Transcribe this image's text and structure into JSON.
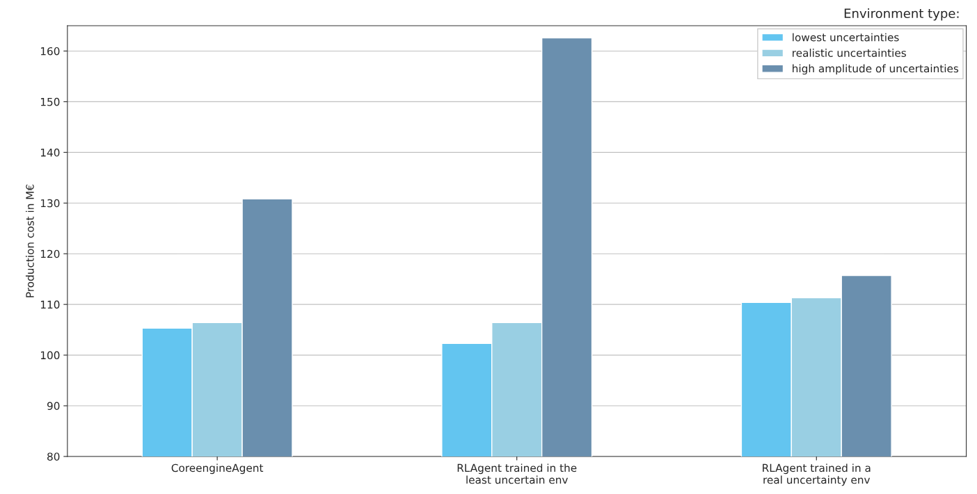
{
  "chart_data": {
    "type": "bar",
    "ylabel": "Production cost in M€",
    "legend_title": "Environment type:",
    "categories": [
      "CoreengineAgent",
      "RLAgent trained in the\nleast uncertain env",
      "RLAgent trained in a\nreal uncertainty env"
    ],
    "series": [
      {
        "name": "lowest uncertainties",
        "color": "#63c5f0",
        "values": [
          105.3,
          102.3,
          110.4
        ]
      },
      {
        "name": "realistic uncertainties",
        "color": "#99cfe3",
        "values": [
          106.4,
          106.4,
          111.3
        ]
      },
      {
        "name": "high amplitude of uncertainties",
        "color": "#6a8fae",
        "values": [
          130.8,
          162.6,
          115.7
        ]
      }
    ],
    "ylim": [
      80,
      165
    ],
    "yticks": [
      80,
      90,
      100,
      110,
      120,
      130,
      140,
      150,
      160
    ],
    "grid": "y",
    "legend": "top right"
  }
}
